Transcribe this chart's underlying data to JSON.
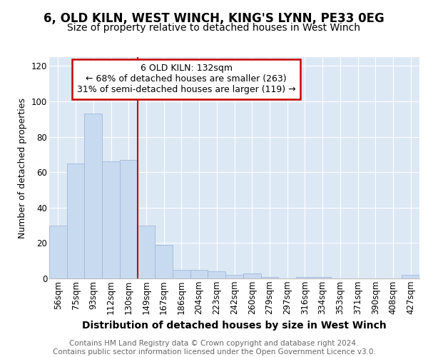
{
  "title1": "6, OLD KILN, WEST WINCH, KING'S LYNN, PE33 0EG",
  "title2": "Size of property relative to detached houses in West Winch",
  "xlabel": "Distribution of detached houses by size in West Winch",
  "ylabel": "Number of detached properties",
  "categories": [
    "56sqm",
    "75sqm",
    "93sqm",
    "112sqm",
    "130sqm",
    "149sqm",
    "167sqm",
    "186sqm",
    "204sqm",
    "223sqm",
    "242sqm",
    "260sqm",
    "279sqm",
    "297sqm",
    "316sqm",
    "334sqm",
    "353sqm",
    "371sqm",
    "390sqm",
    "408sqm",
    "427sqm"
  ],
  "values": [
    30,
    65,
    93,
    66,
    67,
    30,
    19,
    5,
    5,
    4,
    2,
    3,
    1,
    0,
    1,
    1,
    0,
    0,
    0,
    0,
    2
  ],
  "bar_color": "#c8daf0",
  "bar_edge_color": "#a0b8d8",
  "vline_x": 4.5,
  "vline_color": "#cc0000",
  "annotation_box_text": "6 OLD KILN: 132sqm\n← 68% of detached houses are smaller (263)\n31% of semi-detached houses are larger (119) →",
  "annotation_box_color": "#ffffff",
  "annotation_box_edgecolor": "#cc0000",
  "ylim": [
    0,
    125
  ],
  "yticks": [
    0,
    20,
    40,
    60,
    80,
    100,
    120
  ],
  "fig_background": "#ffffff",
  "plot_background": "#dde8f5",
  "footer_text": "Contains HM Land Registry data © Crown copyright and database right 2024.\nContains public sector information licensed under the Open Government Licence v3.0.",
  "title_fontsize": 12,
  "subtitle_fontsize": 10,
  "xlabel_fontsize": 10,
  "ylabel_fontsize": 9,
  "tick_fontsize": 8.5,
  "annotation_fontsize": 9,
  "footer_fontsize": 7.5,
  "grid_color": "#ffffff"
}
